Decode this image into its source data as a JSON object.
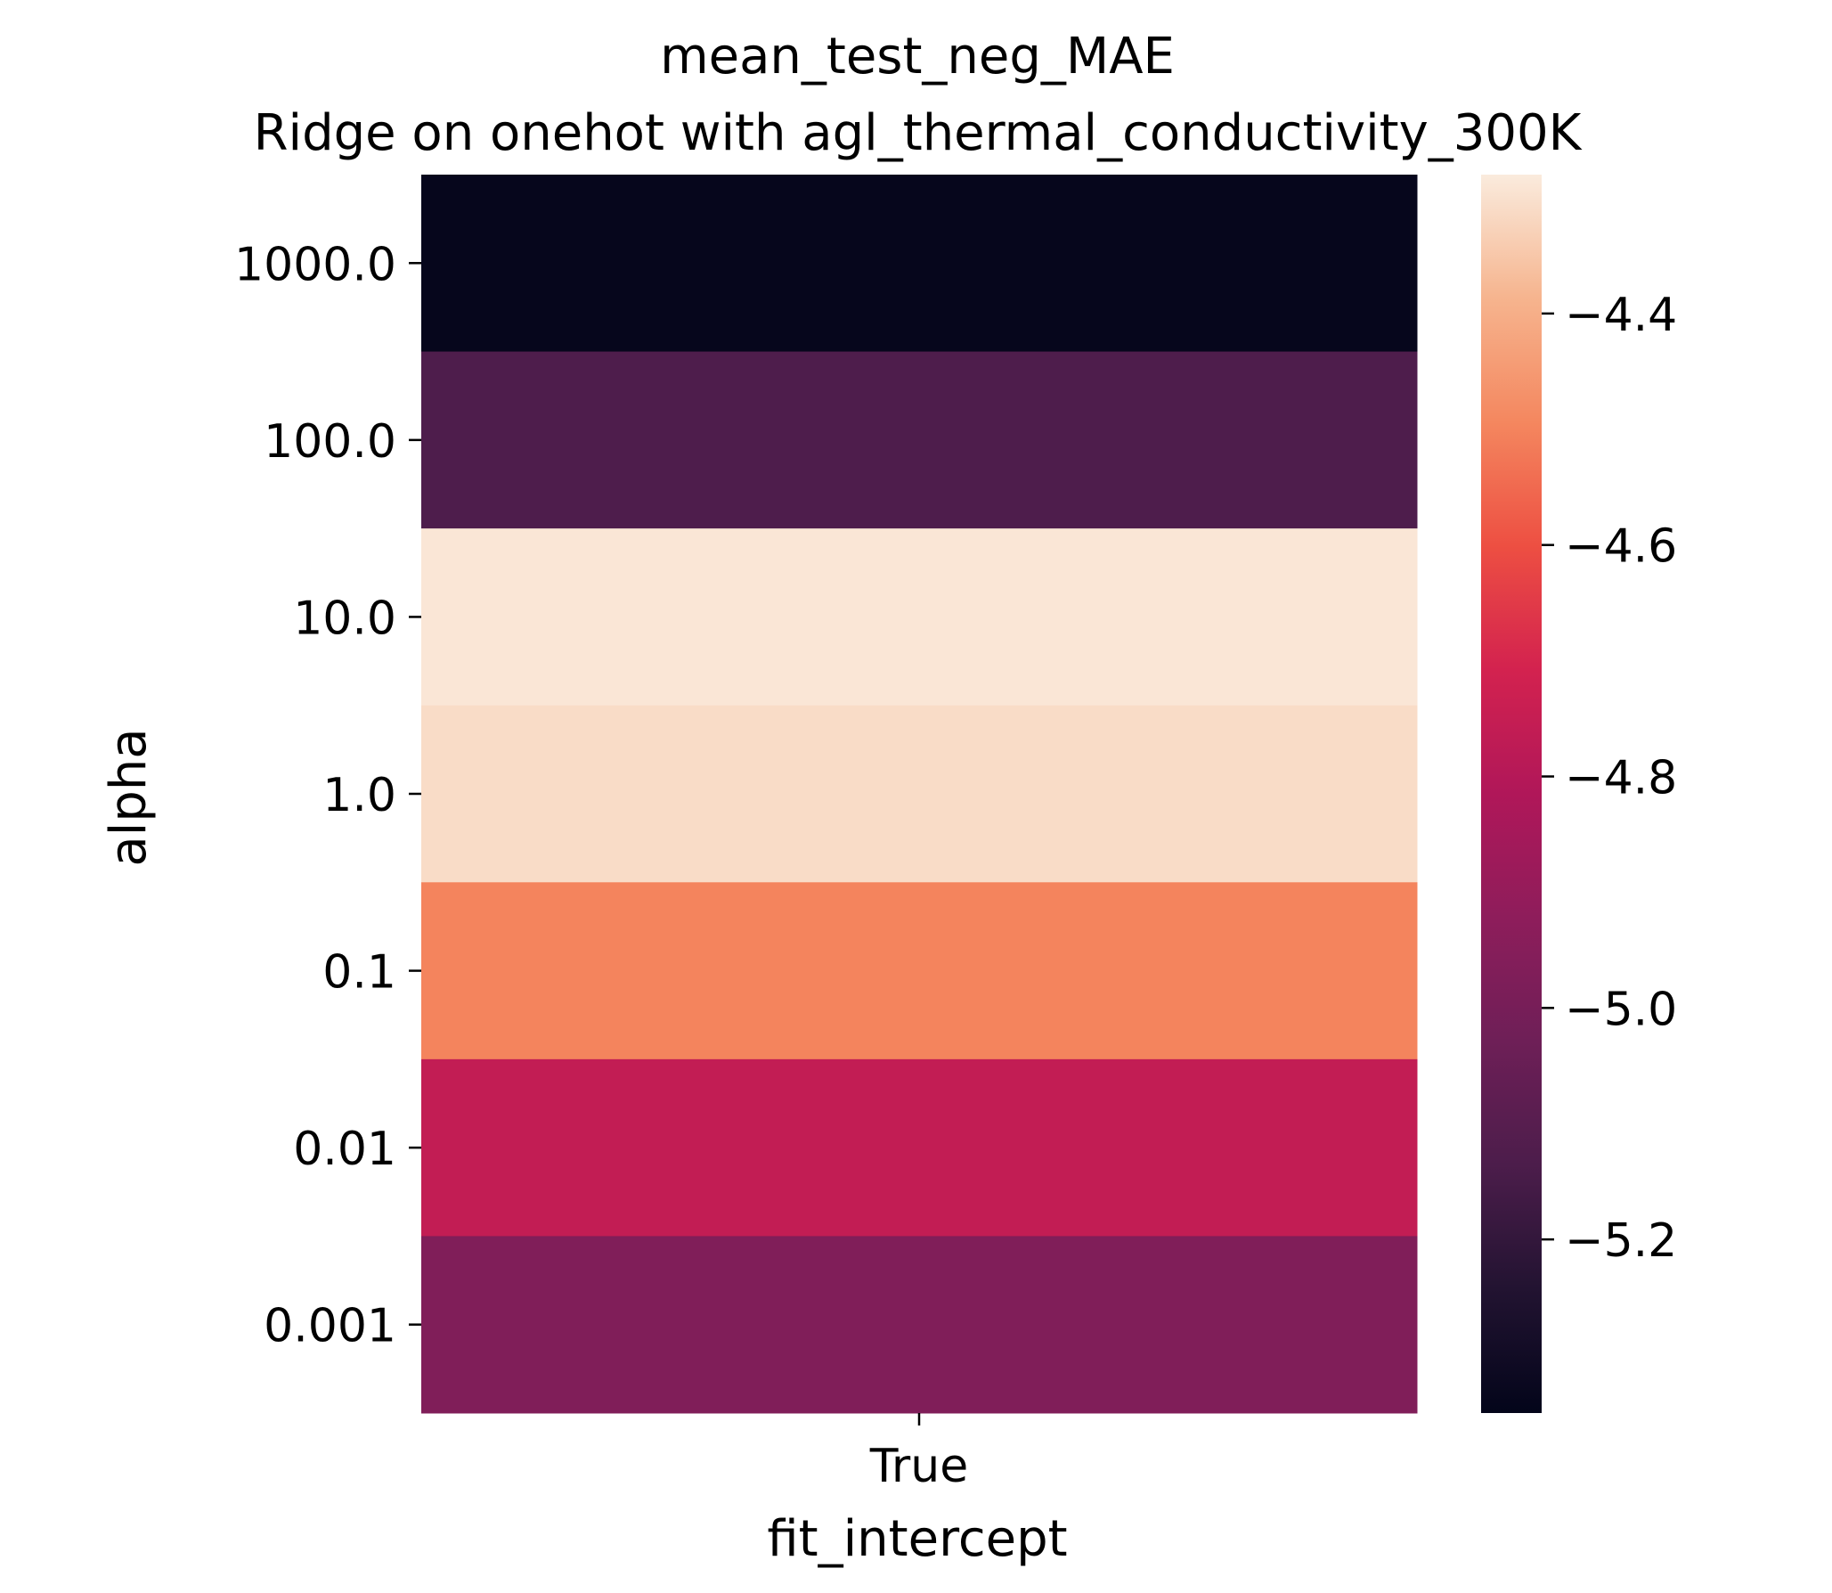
{
  "chart_data": {
    "type": "heatmap",
    "title": "mean_test_neg_MAE",
    "subtitle": "Ridge on onehot with agl_thermal_conductivity_300K",
    "xlabel": "fit_intercept",
    "ylabel": "alpha",
    "x_categories": [
      "True"
    ],
    "y_categories": [
      "1000.0",
      "100.0",
      "10.0",
      "1.0",
      "0.1",
      "0.01",
      "0.001"
    ],
    "values": [
      [
        -5.34
      ],
      [
        -5.13
      ],
      [
        -4.29
      ],
      [
        -4.31
      ],
      [
        -4.5
      ],
      [
        -4.76
      ],
      [
        -4.97
      ]
    ],
    "colormap": "rocket",
    "colorbar": {
      "vmin": -5.35,
      "vmax": -4.28,
      "ticks": [
        -4.4,
        -4.6,
        -4.8,
        -5.0,
        -5.2
      ],
      "tick_labels": [
        "−4.4",
        "−4.6",
        "−4.8",
        "−5.0",
        "−5.2"
      ]
    },
    "grid": false,
    "legend": "colorbar-right"
  }
}
